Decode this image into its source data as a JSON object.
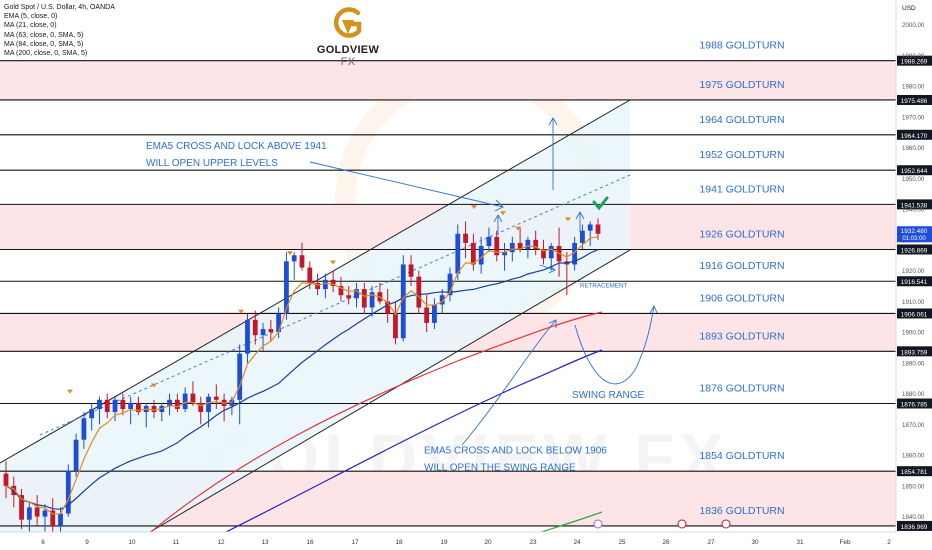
{
  "header": {
    "symbol": "Gold Spot / U.S. Dollar, 4h, OANDA",
    "indicators": [
      "EMA (5, close, 0)",
      "MA (21, close, 0)",
      "MA (63, close, 0, SMA, 5)",
      "MA (84, close, 0, SMA, 5)",
      "MA (200, close, 0, SMA, 5)"
    ]
  },
  "brand": {
    "name": "GOLDVIEW",
    "suffix": "FX",
    "watermark": "GOLDVIEW FX"
  },
  "colors": {
    "up": "#1e4ed8",
    "down": "#c2182b",
    "ema5": "#e68a1e",
    "ma21": "#1a3f9c",
    "ma63": "#e5343b",
    "ma84": "#2222c4",
    "ma200": "#3aa63a",
    "label": "#2d6fd6",
    "zone": "#fce4e7",
    "channel": "#e8f6fa",
    "gold": "#d4921c"
  },
  "chart_data": {
    "type": "candlestick",
    "ylim": [
      1835,
      2008
    ],
    "y_unit": "USD",
    "y_ticks": [
      1840,
      1850,
      1860,
      1870,
      1880,
      1890,
      1900,
      1910,
      1920,
      1930,
      1940,
      1950,
      1960,
      1970,
      1980,
      1990,
      2000
    ],
    "x_ticks": [
      "6",
      "9",
      "10",
      "11",
      "12",
      "13",
      "16",
      "17",
      "18",
      "19",
      "20",
      "23",
      "24",
      "25",
      "26",
      "27",
      "30",
      "31",
      "Feb",
      "2"
    ],
    "levels": [
      {
        "value": 1988.269,
        "label": "1988 GOLDTURN",
        "price": "1988.269"
      },
      {
        "value": 1975.486,
        "label": "1975 GOLDTURN",
        "price": "1975.486"
      },
      {
        "value": 1964.17,
        "label": "1964 GOLDTURN",
        "price": "1964.170"
      },
      {
        "value": 1952.644,
        "label": "1952 GOLDTURN",
        "price": "1952.644"
      },
      {
        "value": 1941.538,
        "label": "1941 GOLDTURN",
        "price": "1941.538"
      },
      {
        "value": 1926.869,
        "label": "1926 GOLDTURN",
        "price": "1926.869"
      },
      {
        "value": 1916.541,
        "label": "1916 GOLDTURN",
        "price": "1916.541"
      },
      {
        "value": 1906.061,
        "label": "1906 GOLDTURN",
        "price": "1906.061"
      },
      {
        "value": 1893.759,
        "label": "1893 GOLDTURN",
        "price": "1893.759"
      },
      {
        "value": 1876.785,
        "label": "1876 GOLDTURN",
        "price": "1876.785"
      },
      {
        "value": 1854.781,
        "label": "1854 GOLDTURN",
        "price": "1854.781"
      },
      {
        "value": 1836.969,
        "label": "1836 GOLDTURN",
        "price": "1836.969"
      }
    ],
    "current_price": {
      "value": 1932.48,
      "label": "1932.480",
      "countdown": "01:03:00"
    },
    "annotations": [
      {
        "text": "EMA5 CROSS AND LOCK ABOVE 1941",
        "value": 1959.5
      },
      {
        "text": "WILL OPEN UPPER LEVELS",
        "value": 1954.0
      },
      {
        "text": "RETRACEMENT",
        "value": 1914.5
      },
      {
        "text": "SWING RANGE",
        "value": 1878.5
      },
      {
        "text": "EMA5 CROSS AND LOCK BELOW 1906",
        "value": 1860.5
      },
      {
        "text": "WILL OPEN THE SWING RANGE",
        "value": 1855.0
      }
    ],
    "candles": [
      [
        1854,
        1858,
        1846,
        1850
      ],
      [
        1850,
        1853,
        1843,
        1847
      ],
      [
        1847,
        1849,
        1836,
        1839
      ],
      [
        1839,
        1845,
        1835,
        1843
      ],
      [
        1843,
        1847,
        1837,
        1840
      ],
      [
        1840,
        1844,
        1835,
        1842
      ],
      [
        1842,
        1846,
        1834,
        1837
      ],
      [
        1837,
        1843,
        1835,
        1841
      ],
      [
        1841,
        1857,
        1840,
        1855
      ],
      [
        1855,
        1867,
        1853,
        1865
      ],
      [
        1865,
        1874,
        1862,
        1872
      ],
      [
        1872,
        1877,
        1868,
        1875
      ],
      [
        1875,
        1879,
        1870,
        1878
      ],
      [
        1878,
        1880,
        1872,
        1874
      ],
      [
        1874,
        1879,
        1871,
        1878
      ],
      [
        1878,
        1880,
        1873,
        1875
      ],
      [
        1875,
        1879,
        1870,
        1877
      ],
      [
        1877,
        1879,
        1873,
        1874
      ],
      [
        1874,
        1877,
        1869,
        1876
      ],
      [
        1876,
        1878,
        1872,
        1874
      ],
      [
        1874,
        1877,
        1871,
        1876
      ],
      [
        1876,
        1880,
        1873,
        1878
      ],
      [
        1878,
        1880,
        1874,
        1875
      ],
      [
        1875,
        1882,
        1874,
        1880
      ],
      [
        1880,
        1884,
        1876,
        1877
      ],
      [
        1877,
        1879,
        1870,
        1874
      ],
      [
        1874,
        1880,
        1869,
        1879
      ],
      [
        1879,
        1883,
        1875,
        1878
      ],
      [
        1878,
        1880,
        1871,
        1876
      ],
      [
        1876,
        1879,
        1873,
        1878
      ],
      [
        1878,
        1896,
        1870,
        1893
      ],
      [
        1893,
        1906,
        1890,
        1904
      ],
      [
        1904,
        1907,
        1896,
        1899
      ],
      [
        1899,
        1903,
        1894,
        1901
      ],
      [
        1901,
        1904,
        1897,
        1900
      ],
      [
        1900,
        1908,
        1898,
        1906
      ],
      [
        1906,
        1926,
        1904,
        1923
      ],
      [
        1923,
        1926,
        1917,
        1925
      ],
      [
        1925,
        1929,
        1920,
        1921
      ],
      [
        1921,
        1923,
        1914,
        1916
      ],
      [
        1916,
        1919,
        1912,
        1914
      ],
      [
        1914,
        1919,
        1911,
        1917
      ],
      [
        1917,
        1920,
        1913,
        1915
      ],
      [
        1915,
        1918,
        1910,
        1912
      ],
      [
        1912,
        1915,
        1909,
        1911
      ],
      [
        1911,
        1916,
        1908,
        1914
      ],
      [
        1914,
        1916,
        1906,
        1908
      ],
      [
        1908,
        1915,
        1905,
        1913
      ],
      [
        1913,
        1916,
        1909,
        1910
      ],
      [
        1910,
        1914,
        1903,
        1906
      ],
      [
        1906,
        1910,
        1896,
        1898
      ],
      [
        1898,
        1925,
        1897,
        1922
      ],
      [
        1922,
        1925,
        1915,
        1918
      ],
      [
        1918,
        1920,
        1906,
        1908
      ],
      [
        1908,
        1912,
        1900,
        1903
      ],
      [
        1903,
        1911,
        1901,
        1909
      ],
      [
        1909,
        1914,
        1906,
        1912
      ],
      [
        1912,
        1921,
        1910,
        1919
      ],
      [
        1919,
        1935,
        1917,
        1932
      ],
      [
        1932,
        1936,
        1924,
        1929
      ],
      [
        1929,
        1932,
        1920,
        1922
      ],
      [
        1922,
        1931,
        1919,
        1928
      ],
      [
        1928,
        1934,
        1926,
        1931
      ],
      [
        1931,
        1933,
        1923,
        1925
      ],
      [
        1925,
        1929,
        1920,
        1926
      ],
      [
        1926,
        1931,
        1923,
        1929
      ],
      [
        1929,
        1934,
        1926,
        1927
      ],
      [
        1927,
        1931,
        1924,
        1930
      ],
      [
        1930,
        1933,
        1925,
        1927
      ],
      [
        1927,
        1930,
        1922,
        1924
      ],
      [
        1924,
        1929,
        1920,
        1928
      ],
      [
        1928,
        1934,
        1918,
        1923
      ],
      [
        1923,
        1926,
        1912,
        1922
      ],
      [
        1922,
        1931,
        1920,
        1929
      ],
      [
        1929,
        1935,
        1927,
        1933
      ],
      [
        1933,
        1936,
        1928,
        1935
      ],
      [
        1935,
        1937,
        1930,
        1932
      ]
    ]
  }
}
